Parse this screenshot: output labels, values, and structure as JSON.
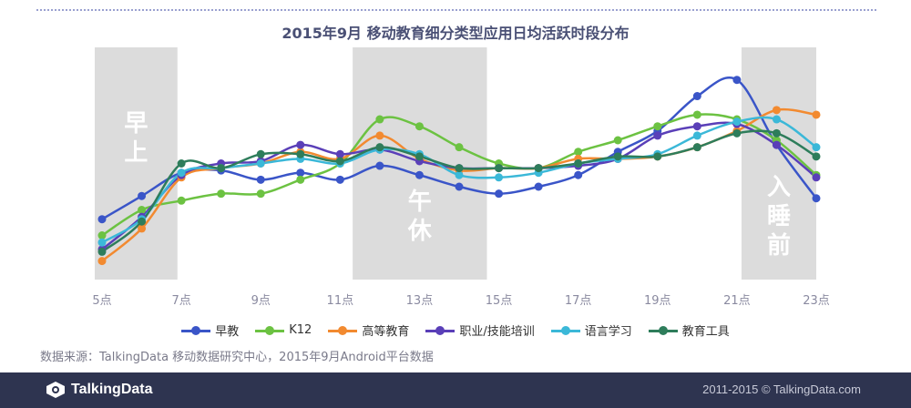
{
  "chart_data": {
    "type": "line",
    "title": "2015年9月  移动教育细分类型应用日均活跃时段分布",
    "categories": [
      "5点",
      "6点",
      "7点",
      "8点",
      "9点",
      "10点",
      "11点",
      "12点",
      "13点",
      "14点",
      "15点",
      "16点",
      "17点",
      "18点",
      "19点",
      "20点",
      "21点",
      "22点",
      "23点"
    ],
    "tick_labels": [
      "5点",
      "7点",
      "9点",
      "11点",
      "13点",
      "15点",
      "17点",
      "19点",
      "21点",
      "23点"
    ],
    "grid": false,
    "legend_position": "bottom",
    "bands": [
      {
        "from": 5,
        "to": 6.9,
        "label": "早上"
      },
      {
        "from": 11.5,
        "to": 14.7,
        "label": "午休"
      },
      {
        "from": 21.3,
        "to": 23.0,
        "label": "入睡前"
      }
    ],
    "series": [
      {
        "name": "早教",
        "color": "#3a55c8",
        "values": [
          26,
          36,
          46,
          47,
          43,
          46,
          43,
          49,
          45,
          40,
          37,
          40,
          45,
          55,
          64,
          79,
          86,
          58,
          35
        ]
      },
      {
        "name": "K12",
        "color": "#6cc242",
        "values": [
          19,
          30,
          34,
          37,
          37,
          43,
          50,
          69,
          66,
          57,
          50,
          48,
          55,
          60,
          66,
          71,
          69,
          60,
          45
        ]
      },
      {
        "name": "高等教育",
        "color": "#f28a30",
        "values": [
          8,
          22,
          44,
          48,
          50,
          55,
          52,
          62,
          52,
          47,
          48,
          48,
          52,
          52,
          53,
          57,
          64,
          73,
          71
        ]
      },
      {
        "name": "职业/技能培训",
        "color": "#5a3fb8",
        "values": [
          13,
          27,
          45,
          50,
          51,
          58,
          54,
          56,
          51,
          48,
          48,
          48,
          49,
          52,
          62,
          66,
          67,
          58,
          44
        ]
      },
      {
        "name": "语言学习",
        "color": "#3bb8d8",
        "values": [
          16,
          26,
          46,
          48,
          50,
          52,
          50,
          56,
          54,
          45,
          44,
          46,
          50,
          52,
          54,
          62,
          68,
          69,
          57
        ]
      },
      {
        "name": "教育工具",
        "color": "#2e7d5b",
        "values": [
          12,
          25,
          50,
          48,
          54,
          54,
          51,
          57,
          53,
          48,
          48,
          48,
          50,
          53,
          53,
          57,
          63,
          63,
          53
        ]
      }
    ]
  },
  "source": "数据来源：TalkingData 移动数据研究中心，2015年9月Android平台数据",
  "footer": {
    "logo": "TalkingData",
    "copyright": "2011-2015 © TalkingData.com"
  }
}
